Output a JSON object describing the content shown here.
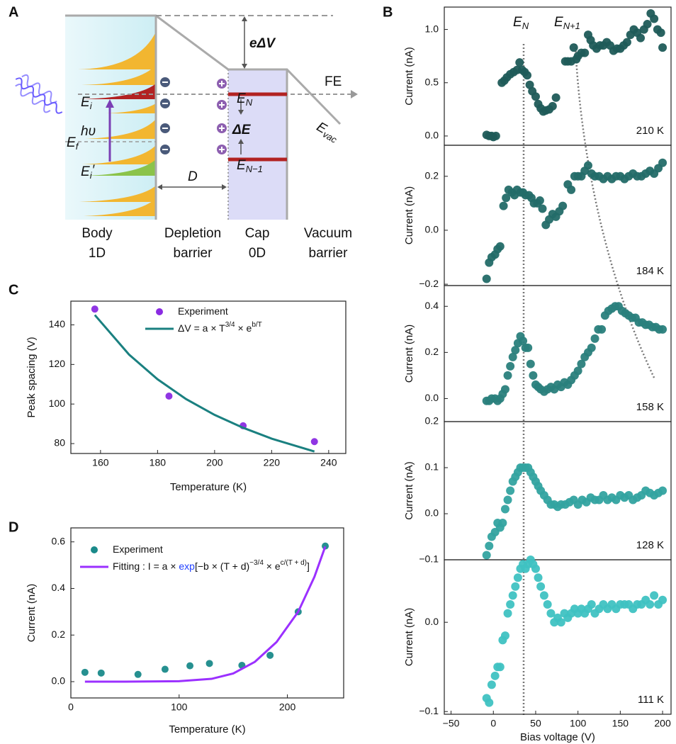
{
  "panel_labels": [
    "A",
    "B",
    "C",
    "D"
  ],
  "diagram": {
    "regions": [
      {
        "line1": "Body",
        "line2": "1D"
      },
      {
        "line1": "Depletion",
        "line2": "barrier"
      },
      {
        "line1": "Cap",
        "line2": "0D"
      },
      {
        "line1": "Vacuum",
        "line2": "barrier"
      }
    ],
    "labels": {
      "fe": "FE",
      "e_delta_v": "eΔV",
      "delta_e": "ΔE",
      "d": "D",
      "h_nu": "hυ",
      "e_n": {
        "main": "E",
        "sub": "N"
      },
      "e_n_minus_1": {
        "main": "E",
        "sub": "N−1"
      },
      "e_vac": {
        "main": "E",
        "sub": "vac"
      },
      "e_i": {
        "main": "E",
        "sub": "i"
      },
      "e_f": {
        "main": "E",
        "sub": "f"
      },
      "e_i_prime": {
        "main": "E",
        "sub": "i",
        "mark": "′"
      }
    }
  },
  "chart_data": [
    {
      "type": "scatter",
      "label": "210 K",
      "ylabel": "Current (nA)",
      "color": "#1f5b58",
      "annotations": [
        {
          "main": "E",
          "sub": "N"
        },
        {
          "main": "E",
          "sub": "N+1"
        }
      ],
      "xlim": [
        -58,
        210
      ],
      "ylim": [
        -0.087,
        1.21
      ],
      "yticks": [
        {
          "value": 0,
          "label": "0.0"
        },
        0.5,
        {
          "value": 1,
          "label": "1.0"
        }
      ],
      "x": [
        -8,
        -5,
        -2,
        0,
        3,
        10,
        13,
        16,
        20,
        24,
        28,
        31,
        34,
        37,
        40,
        43,
        46,
        50,
        53,
        56,
        59,
        62,
        66,
        70,
        74,
        85,
        88,
        92,
        95,
        98,
        100,
        104,
        108,
        112,
        115,
        118,
        122,
        126,
        130,
        134,
        138,
        142,
        146,
        150,
        154,
        158,
        162,
        166,
        170,
        174,
        178,
        182,
        186,
        190,
        194,
        198,
        200
      ],
      "values": [
        0.01,
        0.0,
        0.0,
        -0.01,
        0.0,
        0.5,
        0.52,
        0.55,
        0.58,
        0.6,
        0.62,
        0.69,
        0.62,
        0.6,
        0.57,
        0.48,
        0.42,
        0.37,
        0.3,
        0.26,
        0.23,
        0.24,
        0.25,
        0.28,
        0.36,
        0.7,
        0.7,
        0.7,
        0.83,
        0.72,
        0.75,
        0.78,
        0.78,
        0.95,
        0.9,
        0.85,
        0.82,
        0.85,
        0.85,
        0.88,
        0.85,
        0.8,
        0.82,
        0.82,
        0.85,
        0.88,
        0.95,
        1.0,
        0.97,
        0.92,
        1.0,
        1.05,
        1.15,
        1.1,
        1.0,
        0.97,
        0.83
      ]
    },
    {
      "type": "scatter",
      "label": "184 K",
      "ylabel": "Current (nA)",
      "color": "#236b68",
      "xlim": [
        -58,
        210
      ],
      "ylim": [
        -0.205,
        0.315
      ],
      "yticks": [
        {
          "value": -0.2,
          "label": "−0.2"
        },
        {
          "value": 0,
          "label": "0.0"
        },
        0.2
      ],
      "x": [
        -8,
        -5,
        -2,
        2,
        5,
        8,
        12,
        15,
        18,
        22,
        25,
        28,
        32,
        35,
        38,
        42,
        45,
        48,
        52,
        55,
        58,
        62,
        66,
        70,
        74,
        78,
        82,
        88,
        92,
        96,
        100,
        104,
        108,
        112,
        116,
        120,
        125,
        130,
        135,
        140,
        145,
        150,
        155,
        160,
        165,
        170,
        175,
        180,
        185,
        190,
        195,
        200
      ],
      "values": [
        -0.18,
        -0.12,
        -0.1,
        -0.09,
        -0.07,
        -0.06,
        0.09,
        0.12,
        0.15,
        0.14,
        0.13,
        0.15,
        0.14,
        0.14,
        0.13,
        0.13,
        0.12,
        0.1,
        0.1,
        0.11,
        0.08,
        0.02,
        0.04,
        0.06,
        0.05,
        0.07,
        0.09,
        0.17,
        0.15,
        0.2,
        0.2,
        0.2,
        0.22,
        0.24,
        0.21,
        0.2,
        0.2,
        0.19,
        0.2,
        0.19,
        0.2,
        0.2,
        0.19,
        0.2,
        0.21,
        0.2,
        0.2,
        0.21,
        0.22,
        0.21,
        0.23,
        0.25
      ]
    },
    {
      "type": "scatter",
      "label": "158 K",
      "ylabel": "Current (nA)",
      "color": "#2a7f7c",
      "xlim": [
        -58,
        210
      ],
      "ylim": [
        -0.1,
        0.49
      ],
      "yticks": [
        {
          "value": 0,
          "label": "0.0"
        },
        0.2,
        0.4
      ],
      "x": [
        -8,
        -5,
        -2,
        2,
        5,
        8,
        11,
        14,
        17,
        20,
        23,
        26,
        29,
        32,
        35,
        38,
        41,
        44,
        47,
        50,
        53,
        56,
        60,
        64,
        68,
        72,
        76,
        80,
        84,
        88,
        92,
        96,
        100,
        104,
        108,
        112,
        116,
        120,
        124,
        128,
        132,
        136,
        140,
        144,
        148,
        152,
        156,
        160,
        164,
        168,
        172,
        176,
        180,
        184,
        188,
        192,
        196,
        200
      ],
      "values": [
        -0.01,
        -0.01,
        0.0,
        0.0,
        -0.01,
        0.0,
        0.02,
        0.04,
        0.1,
        0.14,
        0.18,
        0.21,
        0.24,
        0.27,
        0.25,
        0.22,
        0.22,
        0.15,
        0.1,
        0.06,
        0.05,
        0.04,
        0.03,
        0.04,
        0.05,
        0.04,
        0.06,
        0.05,
        0.07,
        0.06,
        0.08,
        0.1,
        0.12,
        0.15,
        0.18,
        0.2,
        0.22,
        0.26,
        0.3,
        0.3,
        0.36,
        0.38,
        0.39,
        0.4,
        0.4,
        0.38,
        0.37,
        0.36,
        0.35,
        0.35,
        0.33,
        0.33,
        0.32,
        0.32,
        0.31,
        0.31,
        0.3,
        0.3
      ]
    },
    {
      "type": "scatter",
      "label": "128 K",
      "ylabel": "Current (nA)",
      "color": "#33a3a0",
      "xlim": [
        -58,
        210
      ],
      "ylim": [
        -0.1,
        0.2
      ],
      "yticks": [
        {
          "value": -0.1,
          "label": "−0.1"
        },
        {
          "value": 0,
          "label": "0.0"
        },
        0.1,
        0.2
      ],
      "x": [
        -8,
        -5,
        -2,
        2,
        5,
        8,
        11,
        14,
        17,
        20,
        23,
        26,
        29,
        32,
        35,
        38,
        41,
        44,
        47,
        50,
        53,
        56,
        60,
        64,
        68,
        72,
        76,
        80,
        85,
        90,
        95,
        100,
        105,
        110,
        115,
        120,
        125,
        130,
        135,
        140,
        145,
        150,
        155,
        160,
        165,
        170,
        175,
        180,
        185,
        190,
        195,
        200
      ],
      "values": [
        -0.09,
        -0.07,
        -0.05,
        -0.04,
        -0.02,
        -0.03,
        -0.02,
        0.01,
        0.03,
        0.05,
        0.07,
        0.08,
        0.09,
        0.1,
        0.1,
        0.1,
        0.1,
        0.09,
        0.08,
        0.07,
        0.06,
        0.05,
        0.04,
        0.03,
        0.02,
        0.02,
        0.015,
        0.02,
        0.02,
        0.025,
        0.03,
        0.02,
        0.03,
        0.025,
        0.035,
        0.03,
        0.03,
        0.04,
        0.03,
        0.035,
        0.03,
        0.04,
        0.035,
        0.04,
        0.03,
        0.035,
        0.04,
        0.05,
        0.045,
        0.04,
        0.045,
        0.05
      ]
    },
    {
      "type": "scatter",
      "label": "111 K",
      "ylabel": "Current (nA)",
      "xlabel": "Bias voltage (V)",
      "color": "#3fc2c2",
      "xlim": [
        -58,
        210
      ],
      "ylim": [
        -0.103,
        0.07
      ],
      "xticks": [
        {
          "value": -50,
          "label": "−50"
        },
        0,
        50,
        100,
        150,
        200
      ],
      "yticks": [
        {
          "value": -0.1,
          "label": "−0.1"
        },
        {
          "value": 0,
          "label": "0.0"
        }
      ],
      "x": [
        -8,
        -5,
        -2,
        2,
        5,
        8,
        11,
        14,
        17,
        20,
        23,
        26,
        29,
        32,
        35,
        38,
        41,
        44,
        47,
        50,
        53,
        56,
        60,
        64,
        68,
        72,
        76,
        80,
        84,
        88,
        92,
        96,
        100,
        104,
        108,
        112,
        116,
        120,
        125,
        130,
        135,
        140,
        145,
        150,
        155,
        160,
        165,
        170,
        175,
        180,
        185,
        190,
        195,
        200
      ],
      "values": [
        -0.085,
        -0.09,
        -0.07,
        -0.06,
        -0.05,
        -0.05,
        -0.02,
        -0.015,
        0.01,
        0.02,
        0.03,
        0.04,
        0.05,
        0.06,
        0.065,
        0.06,
        0.065,
        0.07,
        0.065,
        0.06,
        0.05,
        0.04,
        0.03,
        0.02,
        0.01,
        0.0,
        0.005,
        0.0,
        0.01,
        0.005,
        0.01,
        0.015,
        0.01,
        0.015,
        0.01,
        0.015,
        0.02,
        0.01,
        0.015,
        0.02,
        0.015,
        0.02,
        0.015,
        0.02,
        0.02,
        0.02,
        0.015,
        0.02,
        0.02,
        0.025,
        0.02,
        0.03,
        0.02,
        0.025
      ]
    },
    {
      "type": "scatter",
      "xlabel": "Temperature (K)",
      "ylabel": "Peak spacing (V)",
      "xlim": [
        149.6,
        246
      ],
      "ylim": [
        75,
        152
      ],
      "xticks": [
        160,
        180,
        200,
        220,
        240
      ],
      "yticks": [
        80,
        100,
        120,
        140
      ],
      "series": [
        {
          "type": "scatter",
          "name": [
            {
              "t": "Experiment"
            }
          ],
          "color": "#8a2be2",
          "x": [
            158,
            184,
            210,
            235
          ],
          "values": [
            148,
            104,
            89,
            81
          ]
        },
        {
          "type": "line",
          "name": [
            {
              "t": "ΔV = a × T"
            },
            {
              "t": "3/4",
              "sup": true
            },
            {
              "t": " × e"
            },
            {
              "t": "b/T",
              "sup": true
            }
          ],
          "color": "#1a8080",
          "x": [
            158,
            170,
            180,
            190,
            200,
            210,
            220,
            235
          ],
          "values": [
            145,
            125,
            112.5,
            102.5,
            94.5,
            88,
            82.5,
            76
          ]
        }
      ]
    },
    {
      "type": "scatter",
      "xlabel": "Temperature (K)",
      "ylabel": "Current (nA)",
      "xlim": [
        0,
        252
      ],
      "ylim": [
        -0.07,
        0.66
      ],
      "xticks": [
        0,
        100,
        200
      ],
      "yticks": [
        {
          "value": 0,
          "label": "0.0"
        },
        0.2,
        0.4,
        0.6
      ],
      "series": [
        {
          "type": "scatter",
          "name": [
            {
              "t": "Experiment"
            }
          ],
          "color": "#1a8a8a",
          "x": [
            13,
            28,
            62,
            87,
            110,
            128,
            158,
            184,
            210,
            235
          ],
          "values": [
            0.04,
            0.037,
            0.031,
            0.053,
            0.068,
            0.078,
            0.07,
            0.113,
            0.3,
            0.582
          ]
        },
        {
          "type": "line",
          "name": [
            {
              "t": "Fitting : I = a × "
            },
            {
              "t": "exp",
              "color": "#1f3fff"
            },
            {
              "t": "[−b × (T + d)"
            },
            {
              "t": "−3/4",
              "sup": true
            },
            {
              "t": " × e"
            },
            {
              "t": "c/(T + d)",
              "sup": true
            },
            {
              "t": "]"
            }
          ],
          "color": "#9b30ff",
          "x": [
            13,
            50,
            100,
            130,
            150,
            170,
            190,
            210,
            225,
            235
          ],
          "values": [
            0.0,
            0.0,
            0.002,
            0.012,
            0.035,
            0.085,
            0.17,
            0.3,
            0.45,
            0.58
          ]
        }
      ]
    }
  ]
}
